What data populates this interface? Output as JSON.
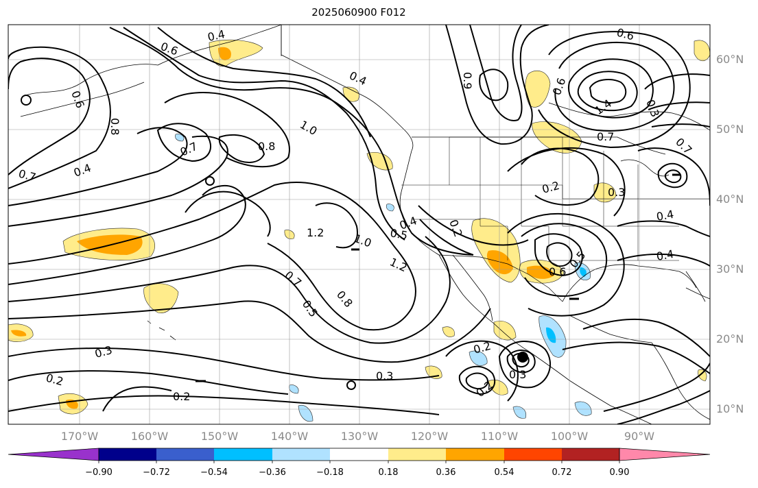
{
  "title": "2025060900 F012",
  "map": {
    "lat_labels": [
      "60°N",
      "50°N",
      "40°N",
      "30°N",
      "20°N",
      "10°N"
    ],
    "lon_labels": [
      "170°W",
      "160°W",
      "150°W",
      "140°W",
      "130°W",
      "120°W",
      "110°W",
      "100°W",
      "90°W"
    ],
    "contour_labels": [
      "0.4",
      "0.6",
      "0.6",
      "0.8",
      "0.7",
      "0.4",
      "0.7",
      "0.8",
      "1.0",
      "1.2",
      "1.0",
      "1.2",
      "0.7",
      "0.8",
      "0.5",
      "0.3",
      "0.2",
      "0.2",
      "0.3",
      "0.2",
      "0.3",
      "0.2",
      "0.6",
      "0.5",
      "0.3",
      "0.4",
      "0.2",
      "0.4",
      "0.7",
      "0.9",
      "0.4",
      "0.5",
      "0.4",
      "0.2",
      "0.6",
      "0.3",
      "1.4",
      "0.7",
      "0.6"
    ]
  },
  "colorbar": {
    "ticks": [
      "−0.90",
      "−0.72",
      "−0.54",
      "−0.36",
      "−0.18",
      "0.18",
      "0.36",
      "0.54",
      "0.72",
      "0.90"
    ],
    "colors": [
      "#9932cc",
      "#00008b",
      "#3a5fcd",
      "#00bfff",
      "#b0e2ff",
      "#ffffff",
      "#ffec8b",
      "#ffa500",
      "#ff4500",
      "#b22222",
      "#ff88aa"
    ]
  }
}
